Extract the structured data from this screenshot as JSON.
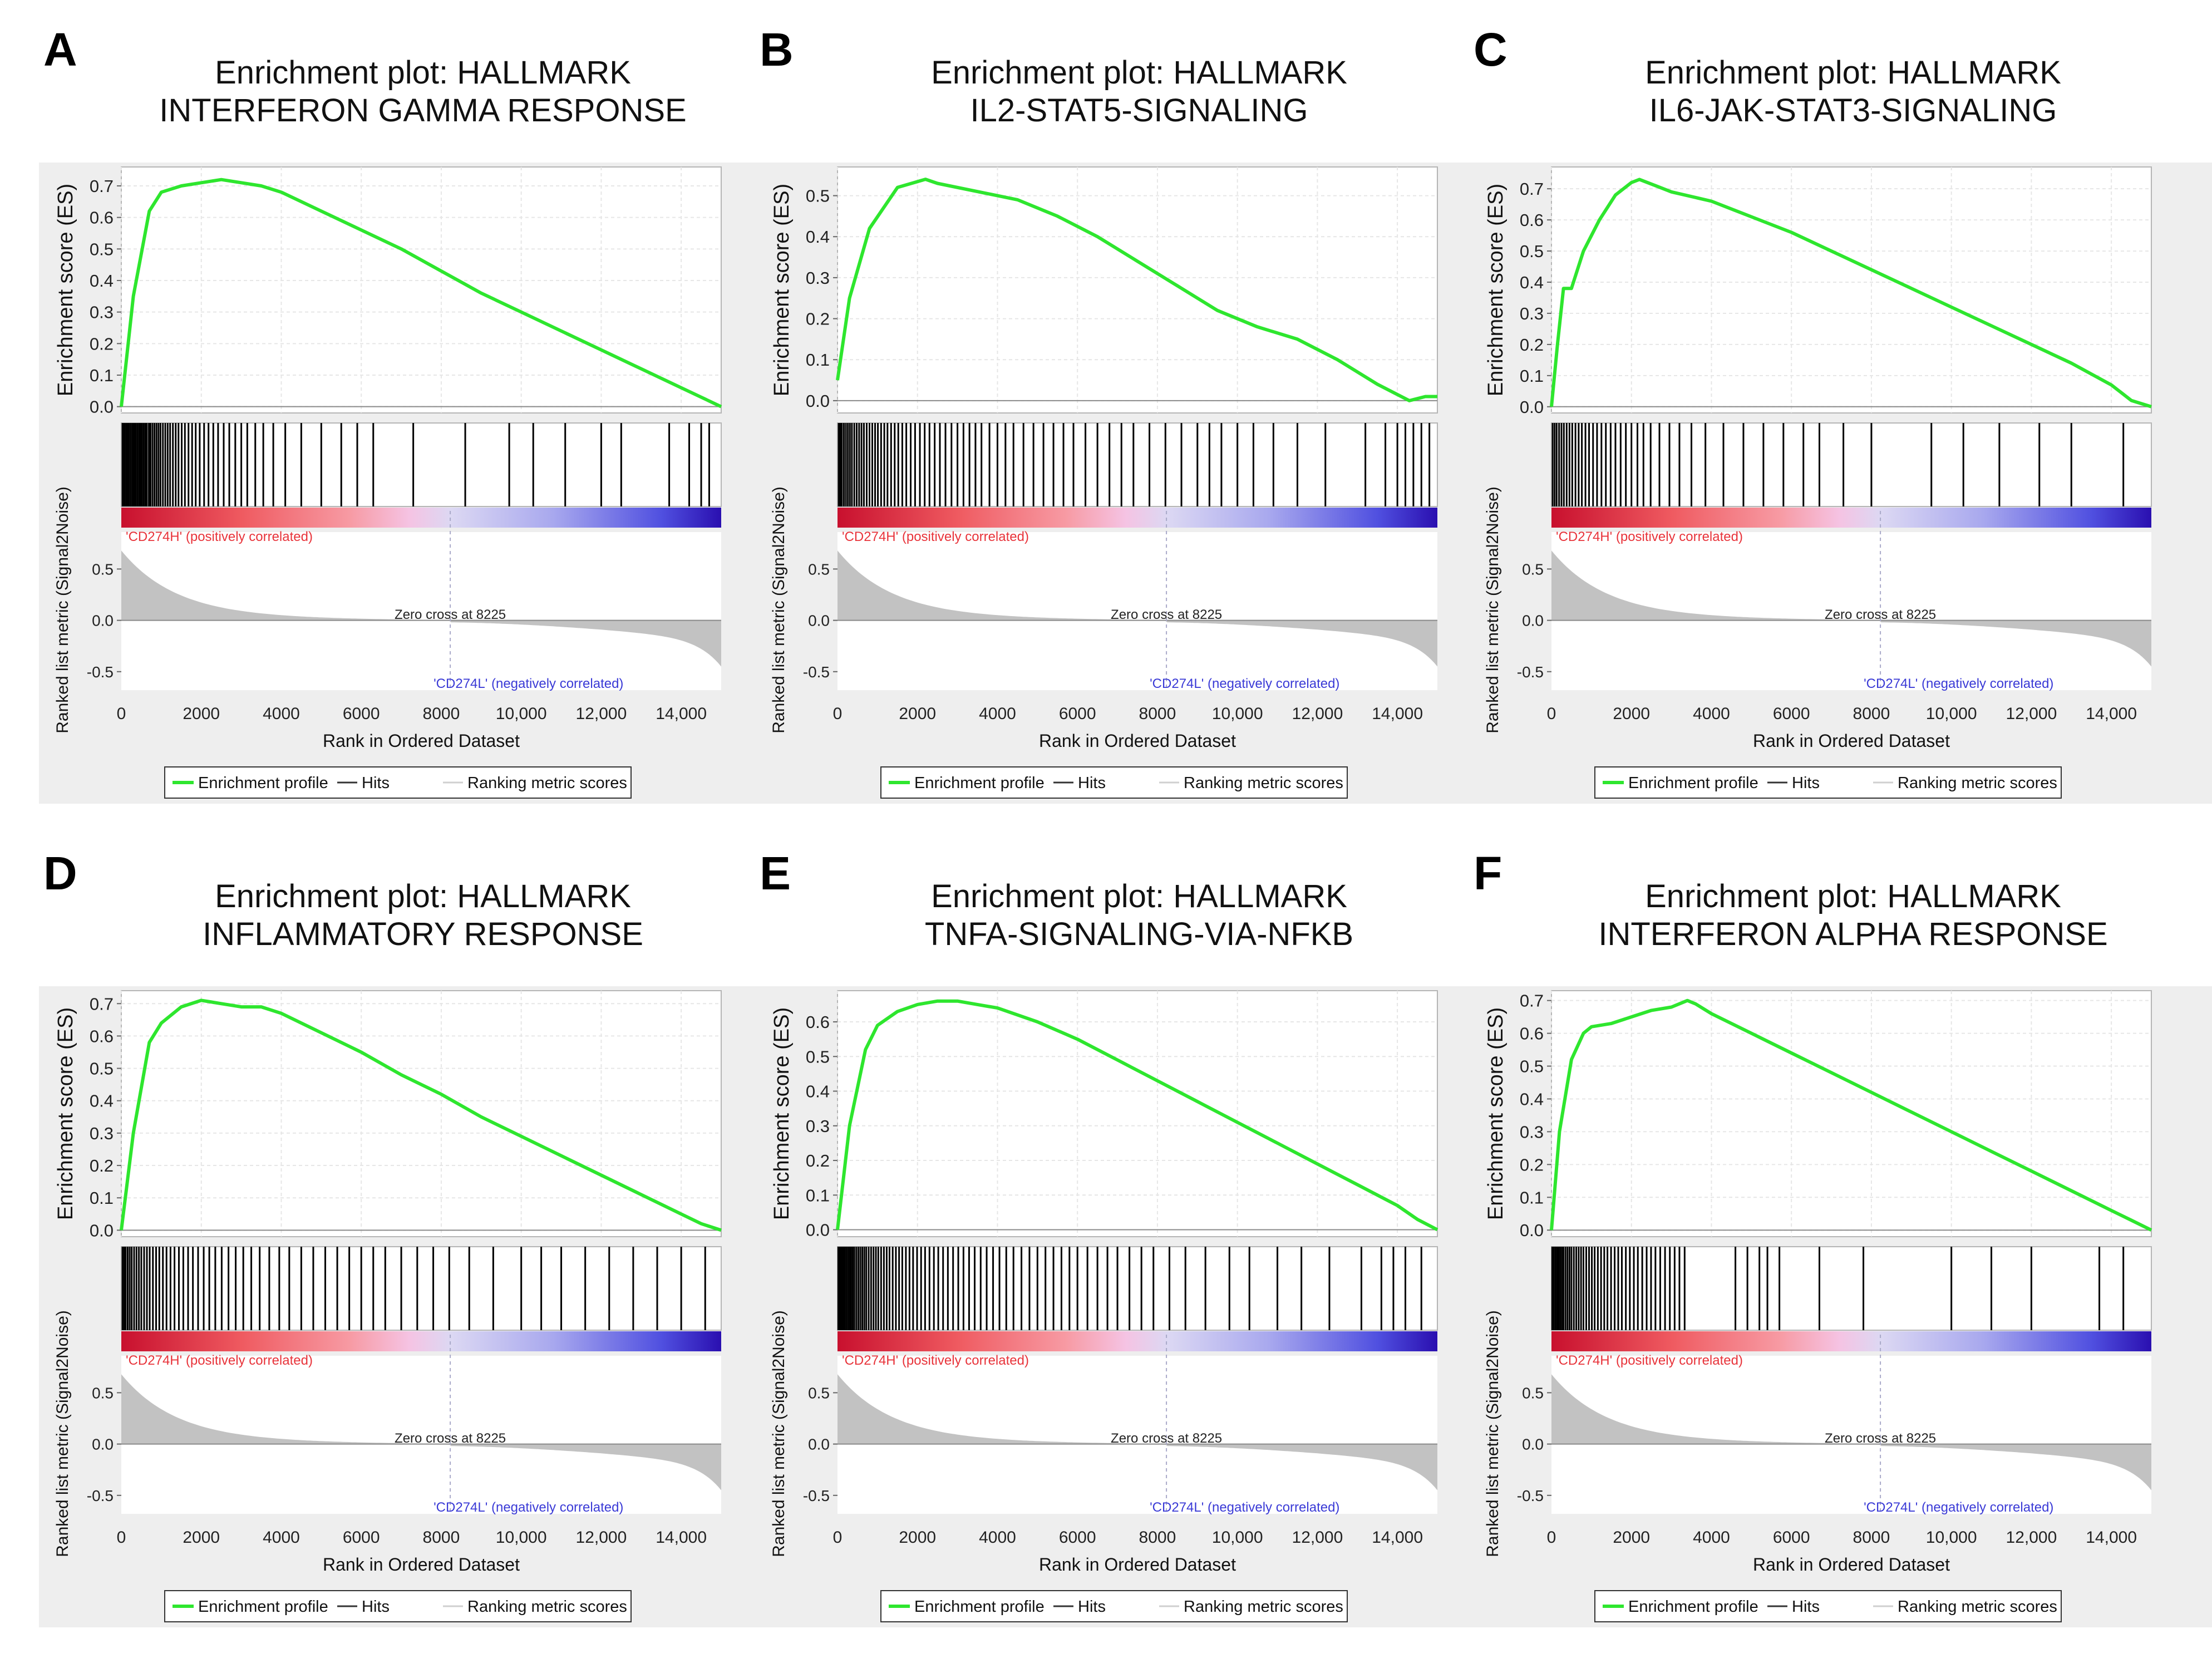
{
  "figure": {
    "plot_title_prefix": "Enrichment plot: HALLMARK",
    "es_axis_label": "Enrichment score (ES)",
    "metric_axis_label": "Ranked list metric (Signal2Noise)",
    "x_axis_label": "Rank in Ordered Dataset",
    "pos_label": "'CD274H' (positively correlated)",
    "neg_label": "'CD274L' (negatively correlated)",
    "zero_cross_label": "Zero cross at 8225",
    "legend": {
      "enrichment_profile": "Enrichment profile",
      "hits": "Hits",
      "ranking_metric": "Ranking metric scores"
    },
    "colors": {
      "es_line": "#2ee62e",
      "hits": "#000000",
      "metric_fill": "#c2c2c2",
      "pos_text": "#e8333a",
      "neg_text": "#3a3ad6",
      "grid": "#e6e6e6",
      "panel_bg": "#eeeeee"
    }
  },
  "chart_data": [
    {
      "panel_letter": "A",
      "title_line2": "INTERFERON GAMMA RESPONSE",
      "type": "line",
      "x": [
        0,
        300,
        700,
        1000,
        1500,
        2000,
        2500,
        3000,
        3500,
        4000,
        5000,
        6000,
        7000,
        8000,
        9000,
        10000,
        11000,
        12000,
        13000,
        14000,
        14500,
        15000
      ],
      "es": [
        0.0,
        0.35,
        0.62,
        0.68,
        0.7,
        0.71,
        0.72,
        0.71,
        0.7,
        0.68,
        0.62,
        0.56,
        0.5,
        0.43,
        0.36,
        0.3,
        0.24,
        0.18,
        0.12,
        0.06,
        0.03,
        0.0
      ],
      "es_ticks": [
        0.0,
        0.1,
        0.2,
        0.3,
        0.4,
        0.5,
        0.6,
        0.7
      ],
      "es_tick_labels": [
        "0.0",
        "0.1",
        "0.2",
        "0.3",
        "0.4",
        "0.5",
        "0.6",
        "0.7"
      ],
      "ylim": [
        -0.02,
        0.76
      ],
      "xlim": [
        0,
        15000
      ],
      "metric_ticks": [
        -0.5,
        0.0,
        0.5
      ],
      "metric_tick_labels": [
        "-0.5",
        "0.0",
        "0.5"
      ],
      "x_ticks": [
        0,
        2000,
        4000,
        6000,
        8000,
        10000,
        12000,
        14000
      ],
      "x_tick_labels": [
        "0",
        "2000",
        "4000",
        "6000",
        "8000",
        "10,000",
        "12,000",
        "14,000"
      ],
      "zero_cross": 8225,
      "hits": [
        30,
        60,
        90,
        130,
        160,
        200,
        240,
        280,
        320,
        360,
        400,
        440,
        480,
        520,
        560,
        600,
        640,
        690,
        730,
        780,
        830,
        880,
        930,
        980,
        1040,
        1100,
        1160,
        1220,
        1290,
        1360,
        1430,
        1510,
        1590,
        1680,
        1770,
        1860,
        1960,
        2070,
        2180,
        2300,
        2420,
        2560,
        2700,
        2850,
        3000,
        3150,
        3350,
        3550,
        3800,
        4100,
        4500,
        5000,
        5500,
        5900,
        6300,
        7300,
        8600,
        9700,
        10300,
        11100,
        12000,
        12500,
        13700,
        14200,
        14500,
        14700
      ]
    },
    {
      "panel_letter": "B",
      "title_line2": "IL2-STAT5-SIGNALING",
      "type": "line",
      "x": [
        0,
        300,
        800,
        1500,
        2200,
        2500,
        3500,
        4500,
        5500,
        6500,
        7500,
        8500,
        9500,
        10500,
        11500,
        12500,
        13500,
        14300,
        14700,
        15000
      ],
      "es": [
        0.05,
        0.25,
        0.42,
        0.52,
        0.54,
        0.53,
        0.51,
        0.49,
        0.45,
        0.4,
        0.34,
        0.28,
        0.22,
        0.18,
        0.15,
        0.1,
        0.04,
        0.0,
        0.01,
        0.01
      ],
      "es_ticks": [
        0.0,
        0.1,
        0.2,
        0.3,
        0.4,
        0.5
      ],
      "es_tick_labels": [
        "0.0",
        "0.1",
        "0.2",
        "0.3",
        "0.4",
        "0.5"
      ],
      "ylim": [
        -0.03,
        0.57
      ],
      "xlim": [
        0,
        15000
      ],
      "metric_ticks": [
        -0.5,
        0.0,
        0.5
      ],
      "metric_tick_labels": [
        "-0.5",
        "0.0",
        "0.5"
      ],
      "x_ticks": [
        0,
        2000,
        4000,
        6000,
        8000,
        10000,
        12000,
        14000
      ],
      "x_tick_labels": [
        "0",
        "2000",
        "4000",
        "6000",
        "8000",
        "10,000",
        "12,000",
        "14,000"
      ],
      "zero_cross": 8225,
      "hits": [
        30,
        70,
        110,
        160,
        210,
        260,
        310,
        360,
        420,
        480,
        540,
        600,
        660,
        730,
        800,
        870,
        940,
        1010,
        1090,
        1170,
        1250,
        1340,
        1430,
        1520,
        1620,
        1720,
        1830,
        1940,
        2060,
        2180,
        2300,
        2430,
        2560,
        2700,
        2850,
        3000,
        3150,
        3300,
        3450,
        3600,
        3800,
        4000,
        4200,
        4400,
        4650,
        4900,
        5150,
        5400,
        5650,
        5900,
        6200,
        6500,
        6800,
        7100,
        7400,
        7800,
        8200,
        8600,
        9000,
        9300,
        9600,
        10000,
        10400,
        10900,
        11500,
        12200,
        13200,
        13700,
        14000,
        14200,
        14400,
        14600,
        14800
      ]
    },
    {
      "panel_letter": "C",
      "title_line2": "IL6-JAK-STAT3-SIGNALING",
      "type": "line",
      "x": [
        0,
        150,
        300,
        500,
        800,
        1200,
        1600,
        2000,
        2200,
        2600,
        3000,
        4000,
        5000,
        6000,
        7000,
        8000,
        9000,
        10000,
        11000,
        12000,
        13000,
        14000,
        14500,
        15000
      ],
      "es": [
        0.0,
        0.2,
        0.38,
        0.38,
        0.5,
        0.6,
        0.68,
        0.72,
        0.73,
        0.71,
        0.69,
        0.66,
        0.61,
        0.56,
        0.5,
        0.44,
        0.38,
        0.32,
        0.26,
        0.2,
        0.14,
        0.07,
        0.02,
        0.0
      ],
      "es_ticks": [
        0.0,
        0.1,
        0.2,
        0.3,
        0.4,
        0.5,
        0.6,
        0.7
      ],
      "es_tick_labels": [
        "0.0",
        "0.1",
        "0.2",
        "0.3",
        "0.4",
        "0.5",
        "0.6",
        "0.7"
      ],
      "ylim": [
        -0.02,
        0.77
      ],
      "xlim": [
        0,
        15000
      ],
      "metric_ticks": [
        -0.5,
        0.0,
        0.5
      ],
      "metric_tick_labels": [
        "-0.5",
        "0.0",
        "0.5"
      ],
      "x_ticks": [
        0,
        2000,
        4000,
        6000,
        8000,
        10000,
        12000,
        14000
      ],
      "x_tick_labels": [
        "0",
        "2000",
        "4000",
        "6000",
        "8000",
        "10,000",
        "12,000",
        "14,000"
      ],
      "zero_cross": 8225,
      "hits": [
        30,
        80,
        130,
        190,
        250,
        310,
        380,
        450,
        520,
        600,
        680,
        760,
        850,
        940,
        1040,
        1140,
        1250,
        1360,
        1480,
        1600,
        1730,
        1860,
        2000,
        2150,
        2300,
        2480,
        2700,
        2950,
        3200,
        3500,
        3850,
        4300,
        4800,
        5300,
        5800,
        6300,
        6700,
        7300,
        8000,
        9500,
        10300,
        11200,
        12200,
        13000,
        14300
      ]
    },
    {
      "panel_letter": "D",
      "title_line2": "INFLAMMATORY RESPONSE",
      "type": "line",
      "x": [
        0,
        300,
        700,
        1000,
        1500,
        2000,
        2500,
        3000,
        3500,
        4000,
        5000,
        6000,
        7000,
        8000,
        9000,
        10000,
        11000,
        12000,
        13000,
        14000,
        14500,
        15000
      ],
      "es": [
        0.0,
        0.3,
        0.58,
        0.64,
        0.69,
        0.71,
        0.7,
        0.69,
        0.69,
        0.67,
        0.61,
        0.55,
        0.48,
        0.42,
        0.35,
        0.29,
        0.23,
        0.17,
        0.11,
        0.05,
        0.02,
        0.0
      ],
      "es_ticks": [
        0.0,
        0.1,
        0.2,
        0.3,
        0.4,
        0.5,
        0.6,
        0.7
      ],
      "es_tick_labels": [
        "0.0",
        "0.1",
        "0.2",
        "0.3",
        "0.4",
        "0.5",
        "0.6",
        "0.7"
      ],
      "ylim": [
        -0.02,
        0.74
      ],
      "xlim": [
        0,
        15000
      ],
      "metric_ticks": [
        -0.5,
        0.0,
        0.5
      ],
      "metric_tick_labels": [
        "-0.5",
        "0.0",
        "0.5"
      ],
      "x_ticks": [
        0,
        2000,
        4000,
        6000,
        8000,
        10000,
        12000,
        14000
      ],
      "x_tick_labels": [
        "0",
        "2000",
        "4000",
        "6000",
        "8000",
        "10,000",
        "12,000",
        "14,000"
      ],
      "zero_cross": 8225,
      "hits": [
        30,
        70,
        110,
        160,
        210,
        260,
        320,
        380,
        440,
        500,
        570,
        640,
        710,
        790,
        870,
        950,
        1040,
        1130,
        1230,
        1330,
        1440,
        1550,
        1670,
        1790,
        1920,
        2060,
        2200,
        2350,
        2510,
        2680,
        2860,
        3050,
        3250,
        3460,
        3700,
        3950,
        4200,
        4500,
        4800,
        5100,
        5400,
        5700,
        6000,
        6300,
        6600,
        7000,
        7400,
        7800,
        8200,
        8700,
        9300,
        10000,
        10500,
        11000,
        11600,
        12200,
        12800,
        13400,
        14000,
        14600
      ]
    },
    {
      "panel_letter": "E",
      "title_line2": "TNFA-SIGNALING-VIA-NFKB",
      "type": "line",
      "x": [
        0,
        300,
        700,
        1000,
        1500,
        2000,
        2500,
        3000,
        3500,
        4000,
        5000,
        6000,
        7000,
        8000,
        9000,
        10000,
        11000,
        12000,
        13000,
        14000,
        14500,
        15000
      ],
      "es": [
        0.0,
        0.3,
        0.52,
        0.59,
        0.63,
        0.65,
        0.66,
        0.66,
        0.65,
        0.64,
        0.6,
        0.55,
        0.49,
        0.43,
        0.37,
        0.31,
        0.25,
        0.19,
        0.13,
        0.07,
        0.03,
        0.0
      ],
      "es_ticks": [
        0.0,
        0.1,
        0.2,
        0.3,
        0.4,
        0.5,
        0.6
      ],
      "es_tick_labels": [
        "0.0",
        "0.1",
        "0.2",
        "0.3",
        "0.4",
        "0.5",
        "0.6"
      ],
      "ylim": [
        -0.02,
        0.69
      ],
      "xlim": [
        0,
        15000
      ],
      "metric_ticks": [
        -0.5,
        0.0,
        0.5
      ],
      "metric_tick_labels": [
        "-0.5",
        "0.0",
        "0.5"
      ],
      "x_ticks": [
        0,
        2000,
        4000,
        6000,
        8000,
        10000,
        12000,
        14000
      ],
      "x_tick_labels": [
        "0",
        "2000",
        "4000",
        "6000",
        "8000",
        "10,000",
        "12,000",
        "14,000"
      ],
      "zero_cross": 8225,
      "hits": [
        20,
        50,
        80,
        110,
        140,
        180,
        220,
        260,
        300,
        340,
        380,
        420,
        470,
        520,
        570,
        620,
        670,
        720,
        780,
        840,
        900,
        960,
        1020,
        1090,
        1160,
        1230,
        1300,
        1380,
        1460,
        1540,
        1620,
        1710,
        1800,
        1890,
        1990,
        2090,
        2190,
        2300,
        2410,
        2520,
        2640,
        2760,
        2890,
        3020,
        3150,
        3290,
        3430,
        3580,
        3730,
        3890,
        4050,
        4220,
        4400,
        4600,
        4800,
        5000,
        5200,
        5400,
        5600,
        5800,
        6000,
        6250,
        6500,
        6750,
        7000,
        7300,
        7600,
        7900,
        8300,
        8700,
        9200,
        9800,
        10300,
        11000,
        11600,
        12300,
        13100,
        13600,
        13900,
        14200,
        14600
      ]
    },
    {
      "panel_letter": "F",
      "title_line2": "INTERFERON ALPHA RESPONSE",
      "type": "line",
      "x": [
        0,
        200,
        500,
        800,
        1000,
        1500,
        2000,
        2500,
        3000,
        3400,
        3600,
        4000,
        5000,
        6000,
        7000,
        8000,
        9000,
        10000,
        11000,
        12000,
        13000,
        14000,
        14500,
        15000
      ],
      "es": [
        0.0,
        0.3,
        0.52,
        0.6,
        0.62,
        0.63,
        0.65,
        0.67,
        0.68,
        0.7,
        0.69,
        0.66,
        0.6,
        0.54,
        0.48,
        0.42,
        0.36,
        0.3,
        0.24,
        0.18,
        0.12,
        0.06,
        0.03,
        0.0
      ],
      "es_ticks": [
        0.0,
        0.1,
        0.2,
        0.3,
        0.4,
        0.5,
        0.6,
        0.7
      ],
      "es_tick_labels": [
        "0.0",
        "0.1",
        "0.2",
        "0.3",
        "0.4",
        "0.5",
        "0.6",
        "0.7"
      ],
      "ylim": [
        -0.02,
        0.73
      ],
      "xlim": [
        0,
        15000
      ],
      "metric_ticks": [
        -0.5,
        0.0,
        0.5
      ],
      "metric_tick_labels": [
        "-0.5",
        "0.0",
        "0.5"
      ],
      "x_ticks": [
        0,
        2000,
        4000,
        6000,
        8000,
        10000,
        12000,
        14000
      ],
      "x_tick_labels": [
        "0",
        "2000",
        "4000",
        "6000",
        "8000",
        "10,000",
        "12,000",
        "14,000"
      ],
      "zero_cross": 8225,
      "hits": [
        20,
        60,
        100,
        140,
        180,
        220,
        260,
        300,
        350,
        400,
        450,
        500,
        560,
        620,
        680,
        740,
        800,
        870,
        940,
        1010,
        1080,
        1160,
        1240,
        1320,
        1400,
        1490,
        1580,
        1670,
        1760,
        1860,
        1960,
        2060,
        2160,
        2270,
        2380,
        2490,
        2600,
        2720,
        2840,
        2960,
        3080,
        3200,
        3330,
        4600,
        4900,
        5200,
        5400,
        5700,
        6700,
        7800,
        10000,
        11000,
        12000,
        13700,
        14300
      ]
    }
  ]
}
